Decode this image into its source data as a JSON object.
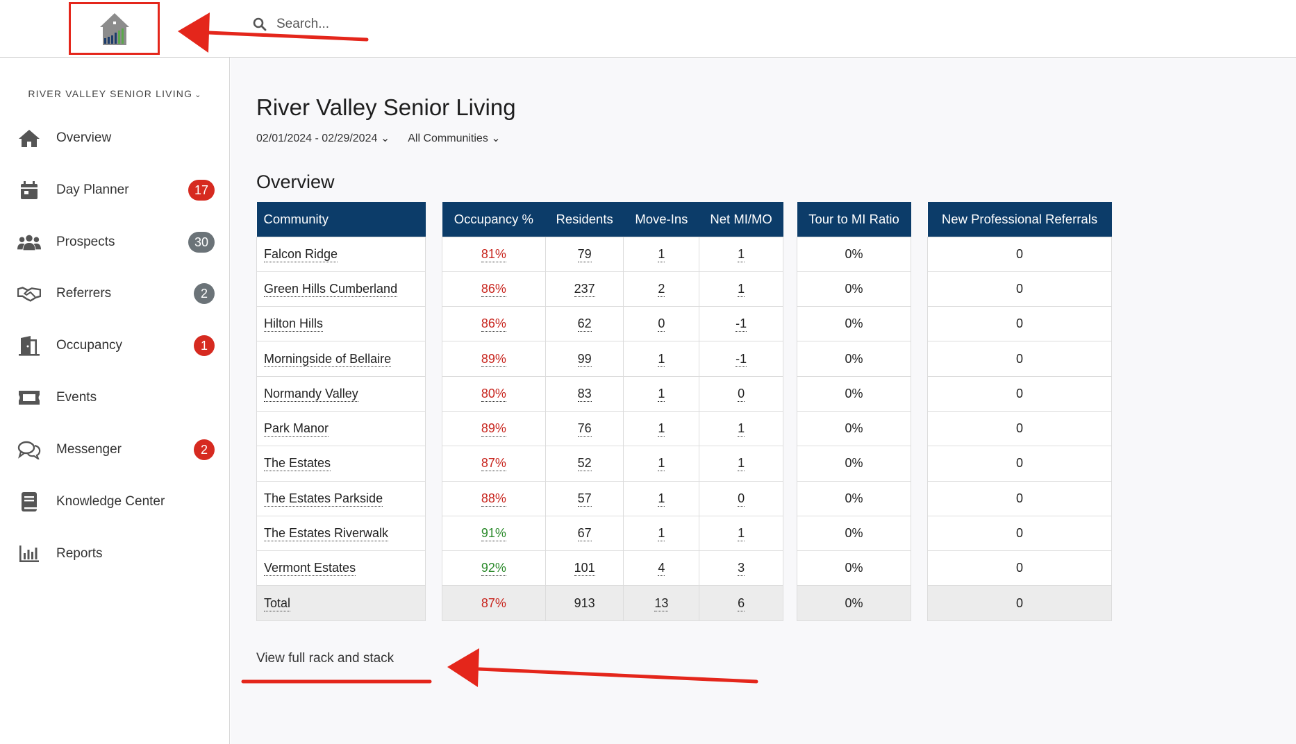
{
  "header": {
    "search_placeholder": "Search..."
  },
  "sidebar": {
    "org_name": "RIVER VALLEY SENIOR LIVING",
    "items": [
      {
        "label": "Overview",
        "icon": "home-icon",
        "badge": null
      },
      {
        "label": "Day Planner",
        "icon": "calendar-icon",
        "badge": "17",
        "badge_color": "red"
      },
      {
        "label": "Prospects",
        "icon": "users-icon",
        "badge": "30",
        "badge_color": "gray"
      },
      {
        "label": "Referrers",
        "icon": "handshake-icon",
        "badge": "2",
        "badge_color": "gray"
      },
      {
        "label": "Occupancy",
        "icon": "door-icon",
        "badge": "1",
        "badge_color": "red"
      },
      {
        "label": "Events",
        "icon": "ticket-icon",
        "badge": null
      },
      {
        "label": "Messenger",
        "icon": "chat-icon",
        "badge": "2",
        "badge_color": "red"
      },
      {
        "label": "Knowledge Center",
        "icon": "book-icon",
        "badge": null
      },
      {
        "label": "Reports",
        "icon": "bar-chart-icon",
        "badge": null
      }
    ]
  },
  "main": {
    "title": "River Valley Senior Living",
    "date_range": "02/01/2024 - 02/29/2024",
    "community_filter": "All Communities",
    "section_title": "Overview",
    "columns": {
      "community": "Community",
      "occupancy": "Occupancy %",
      "residents": "Residents",
      "move_ins": "Move-Ins",
      "net": "Net MI/MO",
      "tour_ratio": "Tour to MI Ratio",
      "referrals": "New Professional Referrals"
    },
    "rows": [
      {
        "community": "Falcon Ridge",
        "occupancy": "81%",
        "occ_color": "red",
        "residents": "79",
        "move_ins": "1",
        "net": "1",
        "tour_ratio": "0%",
        "referrals": "0"
      },
      {
        "community": "Green Hills Cumberland",
        "occupancy": "86%",
        "occ_color": "red",
        "residents": "237",
        "move_ins": "2",
        "net": "1",
        "tour_ratio": "0%",
        "referrals": "0"
      },
      {
        "community": "Hilton Hills",
        "occupancy": "86%",
        "occ_color": "red",
        "residents": "62",
        "move_ins": "0",
        "net": "-1",
        "tour_ratio": "0%",
        "referrals": "0"
      },
      {
        "community": "Morningside of Bellaire",
        "occupancy": "89%",
        "occ_color": "red",
        "residents": "99",
        "move_ins": "1",
        "net": "-1",
        "tour_ratio": "0%",
        "referrals": "0"
      },
      {
        "community": "Normandy Valley",
        "occupancy": "80%",
        "occ_color": "red",
        "residents": "83",
        "move_ins": "1",
        "net": "0",
        "tour_ratio": "0%",
        "referrals": "0"
      },
      {
        "community": "Park Manor",
        "occupancy": "89%",
        "occ_color": "red",
        "residents": "76",
        "move_ins": "1",
        "net": "1",
        "tour_ratio": "0%",
        "referrals": "0"
      },
      {
        "community": "The Estates",
        "occupancy": "87%",
        "occ_color": "red",
        "residents": "52",
        "move_ins": "1",
        "net": "1",
        "tour_ratio": "0%",
        "referrals": "0"
      },
      {
        "community": "The Estates Parkside",
        "occupancy": "88%",
        "occ_color": "red",
        "residents": "57",
        "move_ins": "1",
        "net": "0",
        "tour_ratio": "0%",
        "referrals": "0"
      },
      {
        "community": "The Estates Riverwalk",
        "occupancy": "91%",
        "occ_color": "green",
        "residents": "67",
        "move_ins": "1",
        "net": "1",
        "tour_ratio": "0%",
        "referrals": "0"
      },
      {
        "community": "Vermont Estates",
        "occupancy": "92%",
        "occ_color": "green",
        "residents": "101",
        "move_ins": "4",
        "net": "3",
        "tour_ratio": "0%",
        "referrals": "0"
      }
    ],
    "total": {
      "community": "Total",
      "occupancy": "87%",
      "occ_color": "red",
      "residents": "913",
      "move_ins": "13",
      "net": "6",
      "tour_ratio": "0%",
      "referrals": "0"
    },
    "rack_link": "View full rack and stack"
  },
  "colors": {
    "header_navy": "#0c3c69",
    "badge_red": "#d62a20",
    "badge_gray": "#6b7378",
    "occupancy_red": "#c8261f",
    "occupancy_green": "#2b8a2b",
    "annotation_red": "#e4261b"
  }
}
